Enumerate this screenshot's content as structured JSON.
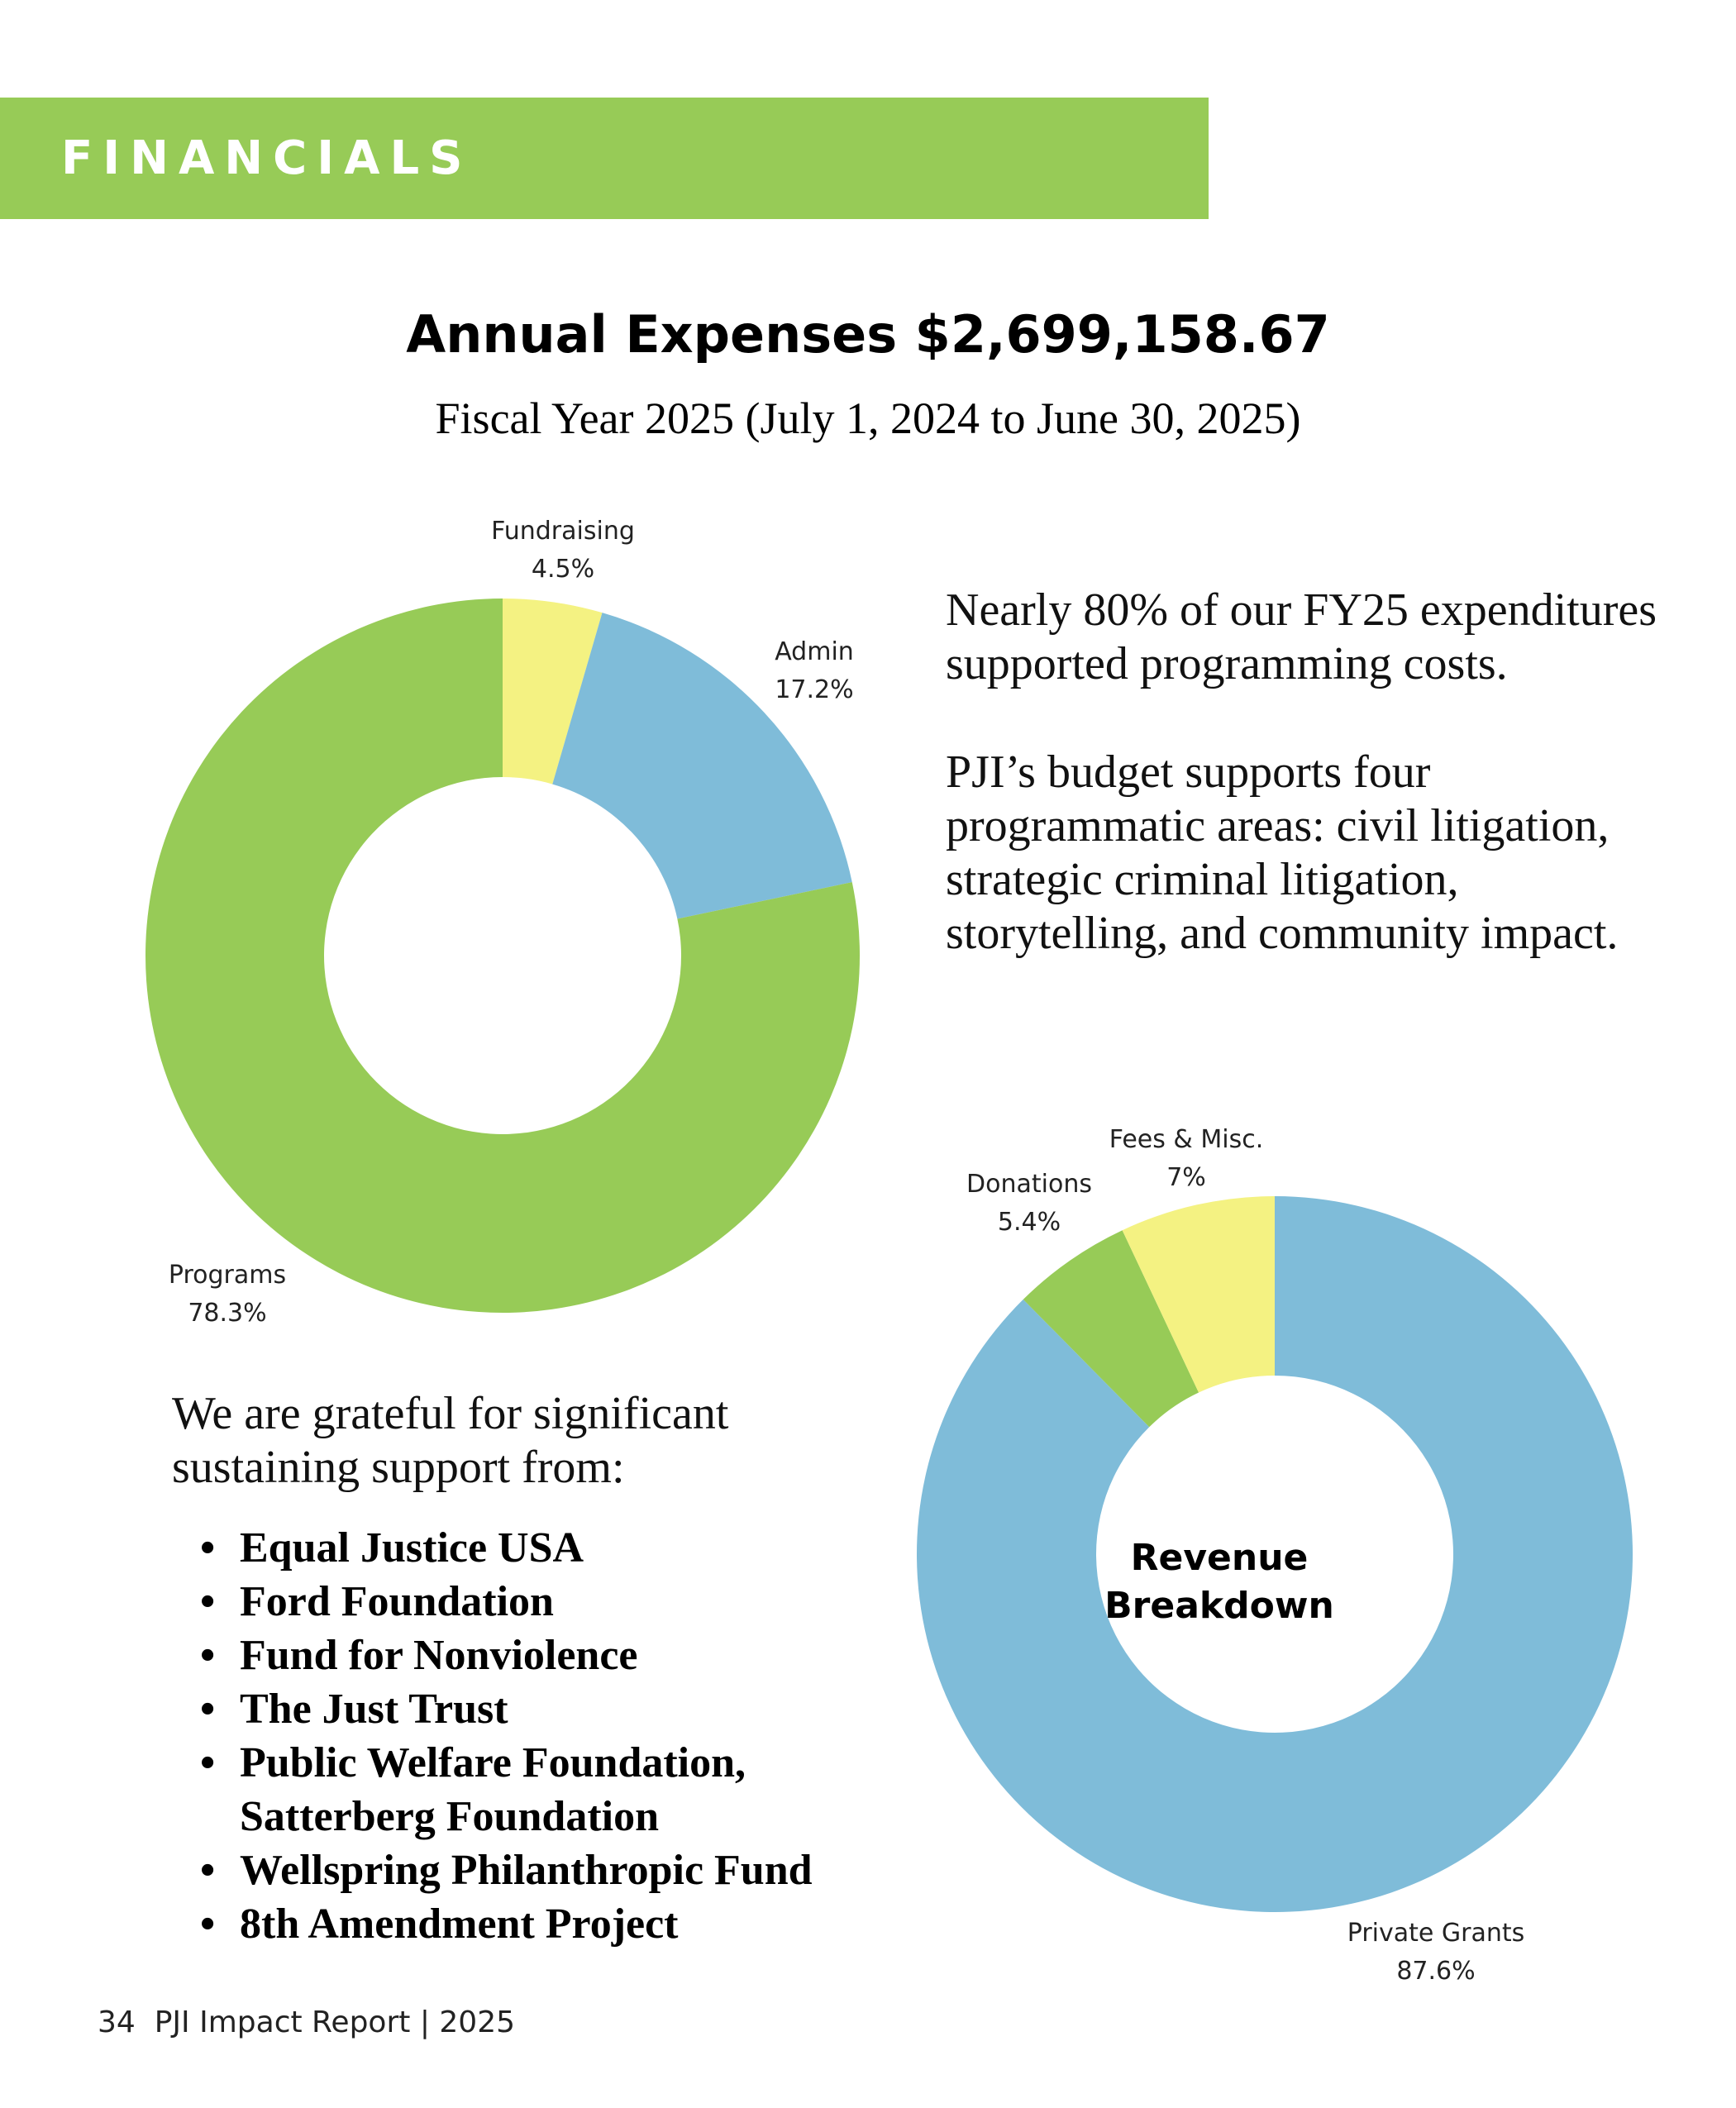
{
  "header": {
    "section_title": "FINANCIALS"
  },
  "expenses": {
    "title": "Annual Expenses $2,699,158.67",
    "subtitle": "Fiscal Year 2025 (July 1, 2024 to June 30, 2025)",
    "chart_data": {
      "type": "pie",
      "title": "Annual Expenses $2,699,158.67",
      "donut": true,
      "slices": [
        {
          "label": "Fundraising",
          "value_label": "4.5%",
          "value": 4.5,
          "color": "#f4f282"
        },
        {
          "label": "Admin",
          "value_label": "17.2%",
          "value": 17.2,
          "color": "#7fbcd9"
        },
        {
          "label": "Programs",
          "value_label": "78.3%",
          "value": 78.3,
          "color": "#97cb57"
        }
      ]
    }
  },
  "intro": {
    "paragraph1": "Nearly 80% of our FY25 expenditures supported programming costs.",
    "paragraph2": "PJI’s budget supports four programmatic areas: civil litigation, strategic criminal litigation, storytelling, and community impact."
  },
  "revenue": {
    "center_line1": "Revenue",
    "center_line2": "Breakdown",
    "chart_data": {
      "type": "pie",
      "title": "Revenue Breakdown",
      "donut": true,
      "slices": [
        {
          "label": "Private Grants",
          "value_label": "87.6%",
          "value": 87.6,
          "color": "#7fbcd9"
        },
        {
          "label": "Donations",
          "value_label": "5.4%",
          "value": 5.4,
          "color": "#97cb57"
        },
        {
          "label": "Fees & Misc.",
          "value_label": "7%",
          "value": 7.0,
          "color": "#f4f282"
        }
      ]
    }
  },
  "gratitude": {
    "intro": "We are grateful for significant sustaining support from:",
    "supporters": [
      "Equal Justice USA",
      "Ford Foundation",
      "Fund for Nonviolence",
      "The Just Trust",
      "Public Welfare Foundation, Satterberg Foundation",
      "Wellspring Philanthropic Fund",
      "8th Amendment Project"
    ]
  },
  "footer": {
    "page_number": "34",
    "report_name": "PJI Impact Report | 2025"
  }
}
